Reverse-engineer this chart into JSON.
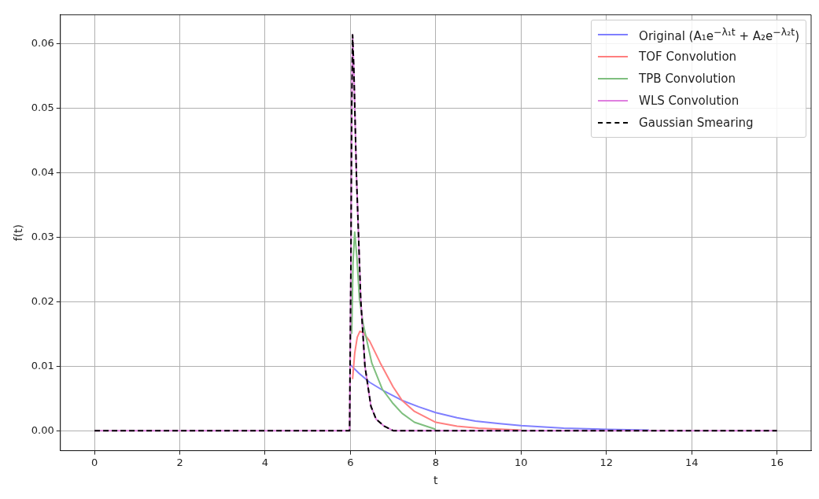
{
  "chart_data": {
    "type": "line",
    "xlabel": "t",
    "ylabel": "f(t)",
    "xlim": [
      -0.8,
      16.8
    ],
    "ylim": [
      -0.0031,
      0.0645
    ],
    "xticks": [
      0,
      2,
      4,
      6,
      8,
      10,
      12,
      14,
      16
    ],
    "yticks": [
      {
        "value": 0,
        "label": "0.00"
      },
      {
        "value": 0.01,
        "label": "0.01"
      },
      {
        "value": 0.02,
        "label": "0.02"
      },
      {
        "value": 0.03,
        "label": "0.03"
      },
      {
        "value": 0.04,
        "label": "0.04"
      },
      {
        "value": 0.05,
        "label": "0.05"
      },
      {
        "value": 0.06,
        "label": "0.06"
      }
    ],
    "grid": true,
    "legend": "top right",
    "marker": "none",
    "series": [
      {
        "name": "Original (A₁e$^{−λ₁t}$ + A₂e$^{−λ₂t}$)",
        "color": "#7f7fff",
        "line_style": "solid",
        "x": [
          6,
          6.2,
          6.45,
          6.8,
          7.21,
          7.6,
          8,
          8.5,
          8.93,
          9.5,
          10,
          11,
          12,
          13
        ],
        "values": [
          0.0102,
          0.0089,
          0.0075,
          0.0061,
          0.0047,
          0.0037,
          0.0028,
          0.002,
          0.0015,
          0.0011,
          0.0008,
          0.0004,
          0.0002,
          0.0001
        ]
      },
      {
        "name": "TOF Convolution",
        "color": "#ff7f7f",
        "line_style": "solid",
        "x": [
          6.05,
          6.1,
          6.16,
          6.22,
          6.3,
          6.45,
          6.7,
          7,
          7.21,
          7.5,
          8,
          8.5,
          9,
          10
        ],
        "values": [
          0.008,
          0.012,
          0.0145,
          0.0154,
          0.0152,
          0.0139,
          0.0105,
          0.0068,
          0.0047,
          0.003,
          0.0013,
          0.0007,
          0.0004,
          0.0001
        ]
      },
      {
        "name": "TPB Convolution",
        "color": "#7fbf7f",
        "line_style": "solid",
        "x": [
          6.03,
          6.06,
          6.1,
          6.15,
          6.21,
          6.3,
          6.5,
          6.75,
          7,
          7.21,
          7.5,
          8
        ],
        "values": [
          0.015,
          0.026,
          0.0308,
          0.027,
          0.0205,
          0.0165,
          0.0105,
          0.0064,
          0.0042,
          0.0027,
          0.0013,
          0.0002
        ]
      },
      {
        "name": "WLS Convolution",
        "color": "#df7fdf",
        "line_style": "solid",
        "x": [
          0,
          5.98,
          6.01,
          6.03,
          6.05,
          6.08,
          6.14,
          6.24,
          6.34,
          6.48,
          6.6,
          6.79,
          7,
          16
        ],
        "values": [
          0,
          0,
          0.025,
          0.05,
          0.0614,
          0.056,
          0.0398,
          0.0205,
          0.01,
          0.0038,
          0.0018,
          0.0007,
          0,
          0
        ]
      },
      {
        "name": "Gaussian Smearing",
        "color": "#000000",
        "line_style": "dashed",
        "x": [
          0,
          5.98,
          6.01,
          6.03,
          6.05,
          6.08,
          6.14,
          6.24,
          6.34,
          6.48,
          6.6,
          6.79,
          7,
          16
        ],
        "values": [
          0,
          0,
          0.025,
          0.05,
          0.0614,
          0.056,
          0.0398,
          0.0205,
          0.01,
          0.0038,
          0.0018,
          0.0007,
          0,
          0
        ]
      }
    ]
  }
}
